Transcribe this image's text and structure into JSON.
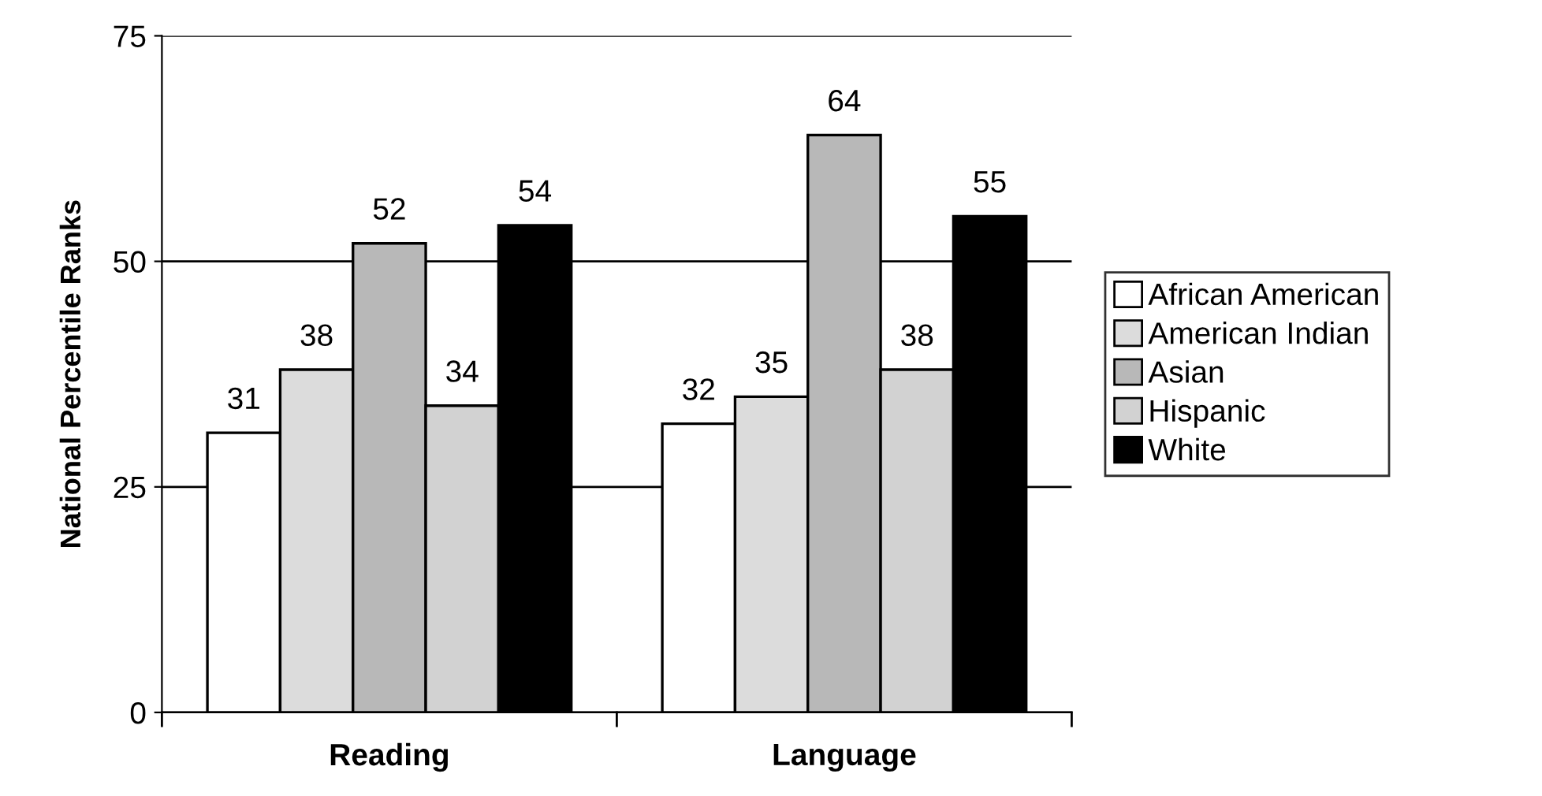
{
  "chart_data": {
    "type": "bar",
    "ylabel": "National Percentile Ranks",
    "categories": [
      "Reading",
      "Language"
    ],
    "series": [
      {
        "name": "African American",
        "color": "#ffffff",
        "values": [
          31,
          32
        ]
      },
      {
        "name": "American Indian",
        "color": "#dcdcdc",
        "values": [
          38,
          35
        ]
      },
      {
        "name": "Asian",
        "color": "#b8b8b8",
        "values": [
          52,
          64
        ]
      },
      {
        "name": "Hispanic",
        "color": "#d2d2d2",
        "values": [
          34,
          38
        ]
      },
      {
        "name": "White",
        "color": "#000000",
        "values": [
          54,
          55
        ]
      }
    ],
    "ylim": [
      0,
      75
    ],
    "yticks": [
      0,
      25,
      50,
      75
    ],
    "grid": "y",
    "legend": "right",
    "data_labels": true
  }
}
